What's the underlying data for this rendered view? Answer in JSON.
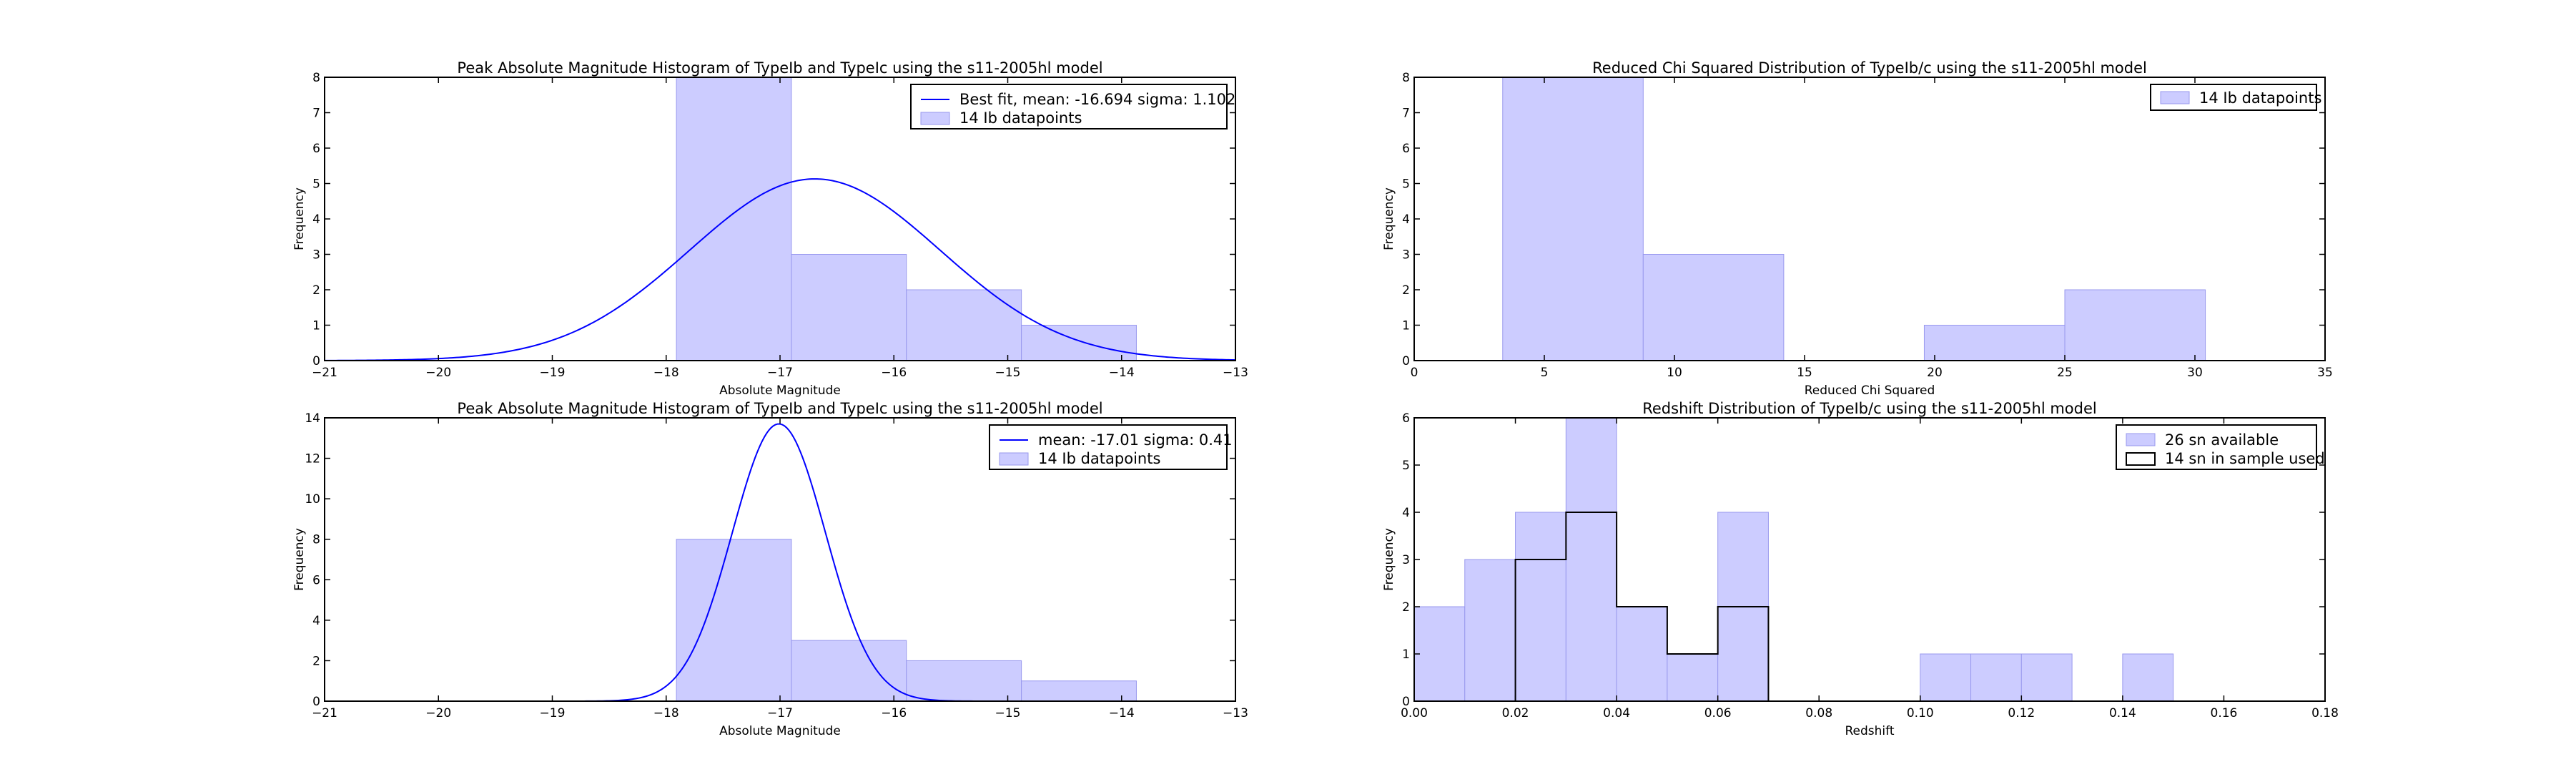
{
  "colors": {
    "fill": "#ccccff",
    "edge": "#9999ee",
    "fit_line": "#0000ff",
    "outline": "#000000"
  },
  "chart_data": [
    {
      "type": "bar",
      "title": "Peak Absolute Magnitude Histogram of TypeIb and TypeIc using the s11-2005hl model",
      "xlabel": "Absolute Magnitude",
      "ylabel": "Frequency",
      "xlim": [
        -21,
        -13
      ],
      "ylim": [
        0,
        8
      ],
      "xticks": [
        "−21",
        "−20",
        "−19",
        "−18",
        "−17",
        "−16",
        "−15",
        "−14",
        "−13"
      ],
      "yticks": [
        "0",
        "1",
        "2",
        "3",
        "4",
        "5",
        "6",
        "7",
        "8"
      ],
      "bins": [
        -17.91,
        -16.9,
        -15.89,
        -14.88,
        -13.87
      ],
      "counts": [
        8,
        3,
        2,
        1
      ],
      "fit": {
        "kind": "gaussian",
        "mean": -16.694,
        "sigma": 1.102,
        "amplitude": 5.13
      },
      "legend": [
        "Best fit, mean: -16.694 sigma: 1.102",
        "14 Ib datapoints"
      ],
      "legend_position": "top-right"
    },
    {
      "type": "bar",
      "title": "Reduced Chi Squared Distribution of TypeIb/c using the s11-2005hl model",
      "xlabel": "Reduced Chi Squared",
      "ylabel": "Frequency",
      "xlim": [
        0,
        35
      ],
      "ylim": [
        0,
        8
      ],
      "xticks": [
        "0",
        "5",
        "10",
        "15",
        "20",
        "25",
        "30",
        "35"
      ],
      "yticks": [
        "0",
        "1",
        "2",
        "3",
        "4",
        "5",
        "6",
        "7",
        "8"
      ],
      "bins": [
        3.4,
        8.8,
        14.2,
        19.6,
        25.0,
        30.4
      ],
      "counts": [
        8,
        3,
        0,
        1,
        2
      ],
      "legend": [
        "14 Ib datapoints"
      ],
      "legend_position": "top-right"
    },
    {
      "type": "bar",
      "title": "Peak Absolute Magnitude Histogram of TypeIb and TypeIc using the s11-2005hl model",
      "xlabel": "Absolute Magnitude",
      "ylabel": "Frequency",
      "xlim": [
        -21,
        -13
      ],
      "ylim": [
        0,
        14
      ],
      "xticks": [
        "−21",
        "−20",
        "−19",
        "−18",
        "−17",
        "−16",
        "−15",
        "−14",
        "−13"
      ],
      "yticks": [
        "0",
        "2",
        "4",
        "6",
        "8",
        "10",
        "12",
        "14"
      ],
      "bins": [
        -17.91,
        -16.9,
        -15.89,
        -14.88,
        -13.87
      ],
      "counts": [
        8,
        3,
        2,
        1
      ],
      "fit": {
        "kind": "gaussian",
        "mean": -17.01,
        "sigma": 0.41,
        "amplitude": 13.7
      },
      "legend": [
        "mean: -17.01 sigma: 0.41",
        "14 Ib datapoints"
      ],
      "legend_position": "top-right"
    },
    {
      "type": "bar",
      "title": "Redshift Distribution of TypeIb/c using the s11-2005hl model",
      "xlabel": "Redshift",
      "ylabel": "Frequency",
      "xlim": [
        0.0,
        0.18
      ],
      "ylim": [
        0,
        6
      ],
      "xticks": [
        "0.00",
        "0.02",
        "0.04",
        "0.06",
        "0.08",
        "0.10",
        "0.12",
        "0.14",
        "0.16",
        "0.18"
      ],
      "yticks": [
        "0",
        "1",
        "2",
        "3",
        "4",
        "5",
        "6"
      ],
      "bins": [
        0.0,
        0.01,
        0.02,
        0.03,
        0.04,
        0.05,
        0.06,
        0.07,
        0.08,
        0.09,
        0.1,
        0.11,
        0.12,
        0.13,
        0.14,
        0.15
      ],
      "counts": [
        2,
        3,
        4,
        6,
        2,
        1,
        4,
        0,
        0,
        0,
        1,
        1,
        1,
        0,
        1
      ],
      "step": {
        "bins": [
          0.02,
          0.03,
          0.04,
          0.05,
          0.06,
          0.07
        ],
        "counts": [
          3,
          4,
          2,
          1,
          2
        ]
      },
      "legend": [
        "26 sn available",
        "14 sn in sample used"
      ],
      "legend_position": "top-right"
    }
  ]
}
